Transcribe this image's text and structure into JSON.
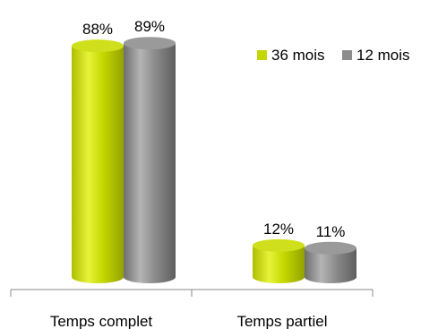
{
  "chart_data": {
    "type": "bar",
    "style": "3d-cylinder",
    "categories": [
      "Temps complet",
      "Temps partiel"
    ],
    "series": [
      {
        "name": "36 mois",
        "values": [
          88,
          12
        ],
        "labels": [
          "88%",
          "12%"
        ],
        "color": "#c3d600"
      },
      {
        "name": "12 mois",
        "values": [
          89,
          11
        ],
        "labels": [
          "89%",
          "11%"
        ],
        "color": "#8c8c8c"
      }
    ],
    "unit": "%",
    "ylim": [
      0,
      100
    ],
    "grid": false,
    "legend_position": "top-right"
  }
}
